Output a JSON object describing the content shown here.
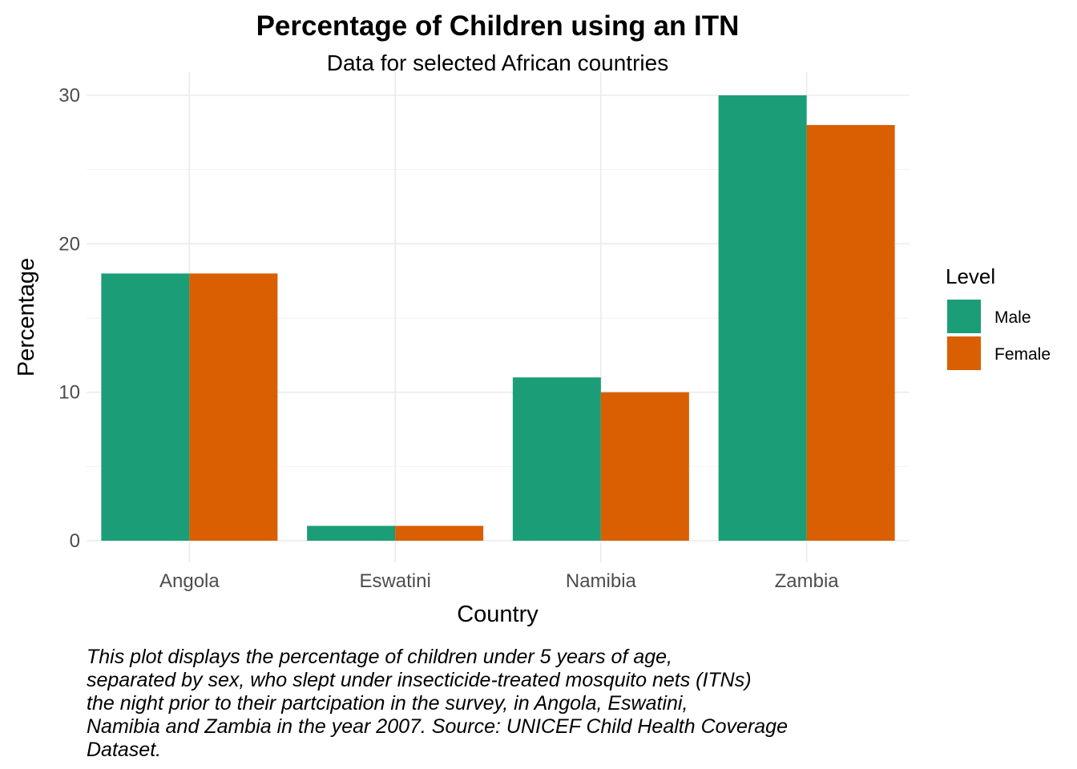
{
  "chart_data": {
    "type": "bar",
    "title": "Percentage of Children using an ITN",
    "subtitle": "Data for selected African countries",
    "xlabel": "Country",
    "ylabel": "Percentage",
    "categories": [
      "Angola",
      "Eswatini",
      "Namibia",
      "Zambia"
    ],
    "series": [
      {
        "name": "Male",
        "values": [
          18,
          1,
          11,
          30
        ],
        "color": "#1b9e77"
      },
      {
        "name": "Female",
        "values": [
          18,
          1,
          10,
          28
        ],
        "color": "#d95f02"
      }
    ],
    "ylim": [
      0,
      30
    ],
    "yticks": [
      0,
      10,
      20,
      30
    ],
    "grid": true,
    "legend": {
      "title": "Level",
      "placement": "right"
    },
    "caption_lines": [
      "This plot displays the percentage of children under 5 years of age,",
      "separated by sex, who slept under insecticide-treated mosquito nets (ITNs)",
      "the night prior to their partcipation in the survey, in Angola, Eswatini,",
      "Namibia and Zambia in the year 2007. Source: UNICEF Child Health Coverage",
      "Dataset."
    ]
  }
}
